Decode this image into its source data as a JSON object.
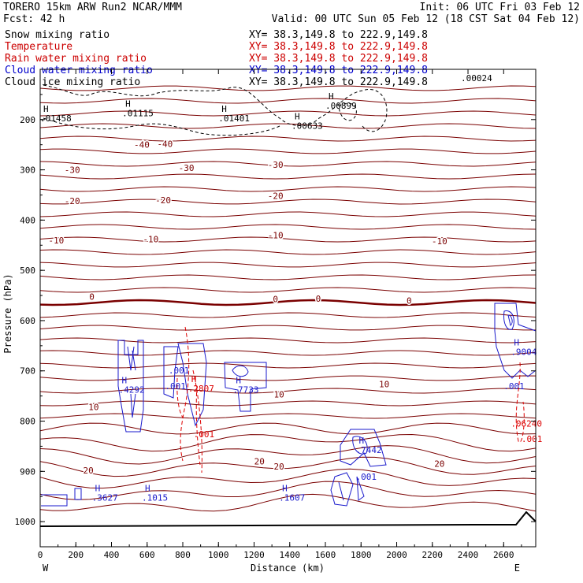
{
  "header": {
    "left_line1": "TORERO  15km ARW   Run2    NCAR/MMM",
    "left_line2": "Fcst:   42 h",
    "init": "Init: 06 UTC Fri 03 Feb 12",
    "valid": "Valid: 00 UTC Sun 05 Feb 12 (18 CST Sat 04 Feb 12)"
  },
  "fields": [
    {
      "name": "Snow mixing ratio",
      "range": "XY=  38.3,149.8 to 222.9,149.8",
      "color": "#000000"
    },
    {
      "name": "Temperature",
      "range": "XY=  38.3,149.8 to 222.9,149.8",
      "color": "#cc0000"
    },
    {
      "name": "Rain water mixing ratio",
      "range": "XY=  38.3,149.8 to 222.9,149.8",
      "color": "#cc0000"
    },
    {
      "name": "Cloud water mixing ratio",
      "range": "XY=  38.3,149.8 to 222.9,149.8",
      "color": "#0000cc"
    },
    {
      "name": "Cloud ice mixing ratio",
      "range": "XY=  38.3,149.8 to 222.9,149.8",
      "color": "#000000"
    }
  ],
  "colors": {
    "temperature": "#7a0000",
    "freezing": "#7a0000",
    "cloud_water": "#1a1acc",
    "rain": "#dd0000",
    "snow_ice": "#000000",
    "terrain": "#000000"
  },
  "chart_data": {
    "type": "cross-section",
    "xlabel": "Distance (km)",
    "ylabel": "Pressure (hPa)",
    "xlim": [
      0,
      2780
    ],
    "ylim": [
      100,
      1050
    ],
    "x_ticks": [
      "0",
      "200",
      "400",
      "600",
      "800",
      "1000",
      "1200",
      "1400",
      "1600",
      "1800",
      "2000",
      "2200",
      "2400",
      "2600"
    ],
    "y_ticks": [
      "200",
      "300",
      "400",
      "500",
      "600",
      "700",
      "800",
      "900",
      "1000"
    ],
    "x_end_labels": {
      "left": "W",
      "right": "E"
    },
    "temperature_labels": [
      {
        "text": "-40",
        "x": 570,
        "p": 250
      },
      {
        "text": "-40",
        "x": 700,
        "p": 248
      },
      {
        "text": "-30",
        "x": 180,
        "p": 300
      },
      {
        "text": "-30",
        "x": 820,
        "p": 296
      },
      {
        "text": "-30",
        "x": 1320,
        "p": 290
      },
      {
        "text": "-20",
        "x": 180,
        "p": 362
      },
      {
        "text": "-20",
        "x": 690,
        "p": 360
      },
      {
        "text": "-20",
        "x": 1320,
        "p": 352
      },
      {
        "text": "-10",
        "x": 90,
        "p": 440
      },
      {
        "text": "-10",
        "x": 620,
        "p": 438
      },
      {
        "text": "-10",
        "x": 1320,
        "p": 430
      },
      {
        "text": "-10",
        "x": 2240,
        "p": 442
      },
      {
        "text": "0",
        "x": 290,
        "p": 552
      },
      {
        "text": "0",
        "x": 1320,
        "p": 557
      },
      {
        "text": "0",
        "x": 1560,
        "p": 556
      },
      {
        "text": "0",
        "x": 2070,
        "p": 560
      },
      {
        "text": "10",
        "x": 300,
        "p": 772
      },
      {
        "text": "10",
        "x": 1340,
        "p": 747
      },
      {
        "text": "10",
        "x": 1930,
        "p": 726
      },
      {
        "text": "20",
        "x": 270,
        "p": 898
      },
      {
        "text": "20",
        "x": 1230,
        "p": 880
      },
      {
        "text": "20",
        "x": 1340,
        "p": 890
      },
      {
        "text": "20",
        "x": 2240,
        "p": 885
      }
    ],
    "max_labels": [
      {
        "text": ".01458",
        "x": 0,
        "p": 200,
        "color": "#000000",
        "h": true
      },
      {
        "text": ".01115",
        "x": 460,
        "p": 190,
        "color": "#000000",
        "h": true
      },
      {
        "text": ".01401",
        "x": 1000,
        "p": 200,
        "color": "#000000",
        "h": true
      },
      {
        "text": ".00633",
        "x": 1410,
        "p": 215,
        "color": "#000000",
        "h": true
      },
      {
        "text": ".00899",
        "x": 1600,
        "p": 175,
        "color": "#000000",
        "h": true
      },
      {
        "text": ".00024",
        "x": 2360,
        "p": 120,
        "color": "#000000",
        "h": false
      },
      {
        "text": ".4292",
        "x": 440,
        "p": 740,
        "color": "#1a1acc",
        "h": true
      },
      {
        "text": ".001",
        "x": 720,
        "p": 702,
        "color": "#1a1acc",
        "h": false
      },
      {
        "text": ".001",
        "x": 700,
        "p": 733,
        "color": "#1a1acc",
        "h": false
      },
      {
        "text": ".2807",
        "x": 830,
        "p": 738,
        "color": "#dd0000",
        "h": true
      },
      {
        "text": ".7733",
        "x": 1080,
        "p": 740,
        "color": "#1a1acc",
        "h": true
      },
      {
        "text": ".001",
        "x": 860,
        "p": 829,
        "color": "#dd0000",
        "h": false
      },
      {
        "text": ".7442",
        "x": 1770,
        "p": 860,
        "color": "#1a1acc",
        "h": true
      },
      {
        "text": ".001",
        "x": 1770,
        "p": 914,
        "color": "#1a1acc",
        "h": false
      },
      {
        "text": ".3627",
        "x": 290,
        "p": 955,
        "color": "#1a1acc",
        "h": true
      },
      {
        "text": ".1015",
        "x": 570,
        "p": 955,
        "color": "#1a1acc",
        "h": true
      },
      {
        "text": ".1607",
        "x": 1340,
        "p": 955,
        "color": "#1a1acc",
        "h": true
      },
      {
        "text": ".9004",
        "x": 2640,
        "p": 665,
        "color": "#1a1acc",
        "h": true
      },
      {
        "text": ".001",
        "x": 2600,
        "p": 733,
        "color": "#1a1acc",
        "h": false
      },
      {
        "text": ".06240",
        "x": 2640,
        "p": 808,
        "color": "#dd0000",
        "h": false
      },
      {
        "text": ".001",
        "x": 2700,
        "p": 838,
        "color": "#dd0000",
        "h": false
      }
    ]
  }
}
